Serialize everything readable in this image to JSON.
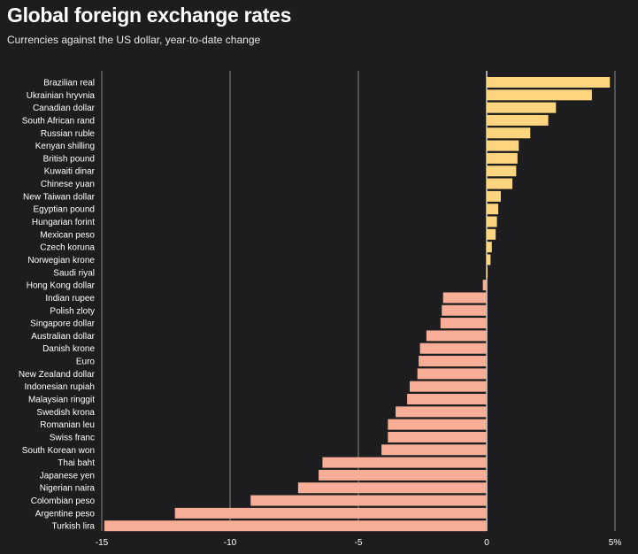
{
  "header": {
    "title": "Global foreign exchange rates",
    "subtitle": "Currencies against the US dollar, year-to-date change"
  },
  "colors": {
    "positive": "#fdd57e",
    "negative": "#f7ad96",
    "grid": "#8a8a8a",
    "zero_line": "#ffffff"
  },
  "chart_data": {
    "type": "bar",
    "orientation": "horizontal",
    "title": "Global foreign exchange rates",
    "subtitle": "Currencies against the US dollar, year-to-date change",
    "xlabel": "",
    "ylabel": "",
    "xlim": [
      -15,
      5
    ],
    "grid": true,
    "ticks": [
      {
        "value": -15,
        "label": "-15"
      },
      {
        "value": -10,
        "label": "-10"
      },
      {
        "value": -5,
        "label": "-5"
      },
      {
        "value": 0,
        "label": "0"
      },
      {
        "value": 5,
        "label": "5%"
      }
    ],
    "categories": [
      "Brazilian real",
      "Ukrainian hryvnia",
      "Canadian dollar",
      "South African rand",
      "Russian ruble",
      "Kenyan shilling",
      "British pound",
      "Kuwaiti dinar",
      "Chinese yuan",
      "New Taiwan dollar",
      "Egyptian pound",
      "Hungarian forint",
      "Mexican peso",
      "Czech koruna",
      "Norwegian krone",
      "Saudi riyal",
      "Hong Kong dollar",
      "Indian rupee",
      "Polish zloty",
      "Singapore dollar",
      "Australian dollar",
      "Danish krone",
      "Euro",
      "New Zealand dollar",
      "Indonesian rupiah",
      "Malaysian ringgit",
      "Swedish krona",
      "Romanian leu",
      "Swiss franc",
      "South Korean won",
      "Thai baht",
      "Japanese yen",
      "Nigerian naira",
      "Colombian peso",
      "Argentine peso",
      "Turkish lira"
    ],
    "values": [
      4.8,
      4.1,
      2.7,
      2.4,
      1.7,
      1.25,
      1.2,
      1.15,
      1.0,
      0.55,
      0.45,
      0.4,
      0.35,
      0.2,
      0.15,
      0.02,
      -0.15,
      -1.7,
      -1.75,
      -1.8,
      -2.35,
      -2.6,
      -2.65,
      -2.7,
      -3.0,
      -3.1,
      -3.55,
      -3.85,
      -3.85,
      -4.1,
      -6.4,
      -6.55,
      -7.35,
      -9.2,
      -12.15,
      -14.9
    ]
  }
}
